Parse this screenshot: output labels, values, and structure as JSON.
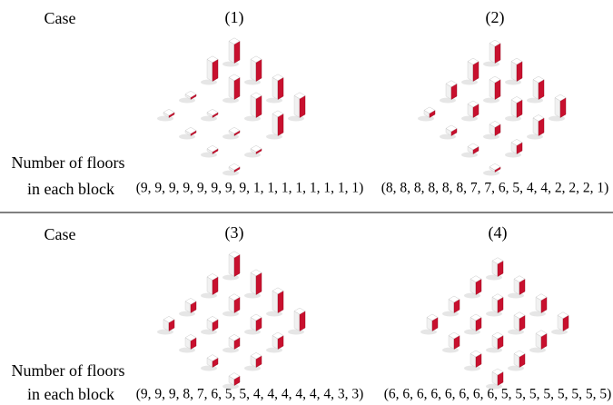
{
  "row_labels": {
    "case": "Case",
    "floors_line1": "Number of floors",
    "floors_line2": "in each block"
  },
  "cases": [
    {
      "label": "(1)",
      "floors": [
        9,
        9,
        9,
        9,
        9,
        9,
        9,
        9,
        1,
        1,
        1,
        1,
        1,
        1,
        1,
        1
      ],
      "floors_label": "(9, 9, 9, 9, 9, 9, 9, 9, 1, 1, 1, 1, 1, 1, 1, 1)"
    },
    {
      "label": "(2)",
      "floors": [
        8,
        8,
        8,
        8,
        8,
        8,
        7,
        7,
        6,
        5,
        4,
        4,
        2,
        2,
        2,
        1
      ],
      "floors_label": "(8, 8, 8, 8, 8, 8, 7, 7, 6, 5, 4, 4, 2, 2, 2, 1)"
    },
    {
      "label": "(3)",
      "floors": [
        9,
        9,
        9,
        8,
        7,
        6,
        5,
        5,
        4,
        4,
        4,
        4,
        4,
        4,
        3,
        3
      ],
      "floors_label": "(9, 9, 9, 8, 7, 6, 5, 5, 4, 4, 4, 4, 4, 4, 3, 3)"
    },
    {
      "label": "(4)",
      "floors": [
        6,
        6,
        6,
        6,
        6,
        6,
        6,
        6,
        5,
        5,
        5,
        5,
        5,
        5,
        5,
        5
      ],
      "floors_label": "(6, 6, 6, 6, 6, 6, 6, 6, 5, 5, 5, 5, 5, 5, 5, 5)"
    }
  ]
}
